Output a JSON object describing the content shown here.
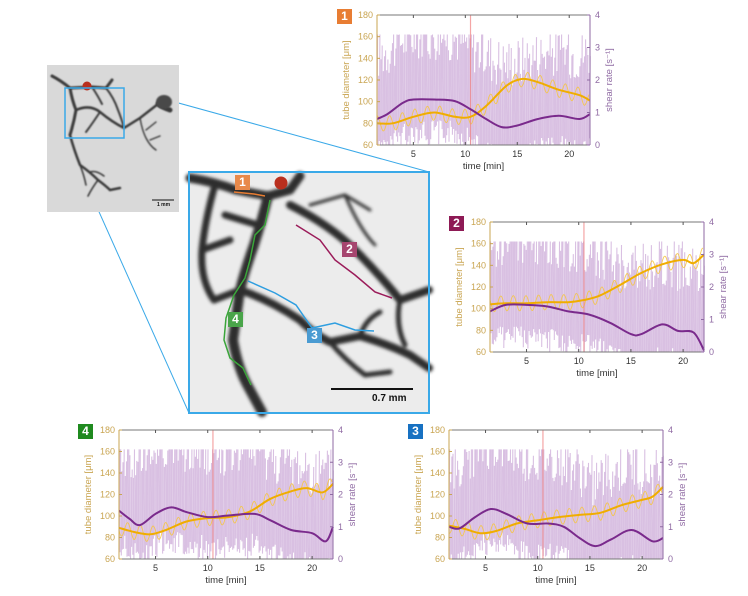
{
  "figure": {
    "overview": {
      "scale_bar_label": "1 mm",
      "inlet_marker_color": "#b92f1e",
      "zoom_box_color": "#3aa9e8"
    },
    "zoom_inset": {
      "scale_bar_label": "0.7 mm",
      "segments": [
        {
          "id": "1",
          "color": "#e87d33"
        },
        {
          "id": "2",
          "color": "#9b1c5a"
        },
        {
          "id": "3",
          "color": "#2e9ee0"
        },
        {
          "id": "4",
          "color": "#3aa53a"
        }
      ]
    }
  },
  "chart_data": [
    {
      "id": "1",
      "type": "line",
      "badge": "1",
      "badge_color": "#e87d33",
      "xlabel": "time [min]",
      "ylabel_left": "tube diameter [μm]",
      "ylabel_right": "shear rate [s⁻¹]",
      "xlim": [
        1.5,
        22
      ],
      "ylim_left": [
        60,
        180
      ],
      "ylim_right": [
        0,
        4
      ],
      "xticks": [
        5,
        10,
        15,
        20
      ],
      "yticks_left": [
        60,
        80,
        100,
        120,
        140,
        160,
        180
      ],
      "yticks_right": [
        0,
        1,
        2,
        3,
        4
      ],
      "marker_time": 10.5,
      "series": [
        {
          "name": "tube diameter (smoothed)",
          "axis": "left",
          "color": "#f0ad00",
          "x": [
            1.5,
            3,
            5,
            7,
            9,
            10.5,
            12,
            14,
            15.5,
            17,
            19,
            21,
            22
          ],
          "y": [
            80,
            80,
            86,
            90,
            86,
            86,
            96,
            115,
            121,
            118,
            111,
            106,
            101
          ]
        },
        {
          "name": "shear rate (smoothed)",
          "axis": "right",
          "color": "#7a2a8c",
          "x": [
            1.5,
            2.5,
            4,
            5,
            7,
            9,
            10.5,
            12,
            13.5,
            15,
            17,
            19,
            21,
            22
          ],
          "y": [
            0.8,
            0.95,
            1.3,
            1.4,
            1.4,
            1.35,
            1.1,
            0.8,
            0.55,
            0.6,
            0.8,
            0.9,
            0.8,
            0.95
          ]
        }
      ]
    },
    {
      "id": "2",
      "type": "line",
      "badge": "2",
      "badge_color": "#8e1a55",
      "xlabel": "time [min]",
      "ylabel_left": "tube diameter [μm]",
      "ylabel_right": "shear rate [s⁻¹]",
      "xlim": [
        1.5,
        22
      ],
      "ylim_left": [
        60,
        180
      ],
      "ylim_right": [
        0,
        4
      ],
      "xticks": [
        5,
        10,
        15,
        20
      ],
      "yticks_left": [
        60,
        80,
        100,
        120,
        140,
        160,
        180
      ],
      "yticks_right": [
        0,
        1,
        2,
        3,
        4
      ],
      "marker_time": 10.5,
      "series": [
        {
          "name": "tube diameter (smoothed)",
          "axis": "left",
          "color": "#f0ad00",
          "x": [
            1.5,
            3,
            5,
            7,
            9,
            10.5,
            12,
            14,
            16,
            18,
            20,
            21,
            22
          ],
          "y": [
            104,
            105,
            105,
            106,
            106,
            108,
            112,
            122,
            133,
            141,
            145,
            142,
            150
          ]
        },
        {
          "name": "shear rate (smoothed)",
          "axis": "right",
          "color": "#7a2a8c",
          "x": [
            1.5,
            3,
            5,
            7,
            9,
            11,
            13,
            15,
            16,
            18,
            19.5,
            21,
            22
          ],
          "y": [
            1.25,
            1.45,
            1.45,
            1.4,
            1.25,
            1.15,
            0.9,
            0.55,
            0.55,
            0.85,
            0.65,
            0.6,
            0.05
          ]
        }
      ]
    },
    {
      "id": "4",
      "type": "line",
      "badge": "4",
      "badge_color": "#1f8a1f",
      "xlabel": "time [min]",
      "ylabel_left": "tube diameter [μm]",
      "ylabel_right": "shear rate [s⁻¹]",
      "xlim": [
        1.5,
        22
      ],
      "ylim_left": [
        60,
        180
      ],
      "ylim_right": [
        0,
        4
      ],
      "xticks": [
        5,
        10,
        15,
        20
      ],
      "yticks_left": [
        60,
        80,
        100,
        120,
        140,
        160,
        180
      ],
      "yticks_right": [
        0,
        1,
        2,
        3,
        4
      ],
      "marker_time": 10.5,
      "series": [
        {
          "name": "tube diameter (smoothed)",
          "axis": "left",
          "color": "#f0ad00",
          "x": [
            1.5,
            3,
            4.5,
            6,
            8,
            10,
            12,
            14,
            16,
            18,
            19.5,
            21,
            22
          ],
          "y": [
            89,
            85,
            83,
            87,
            95,
            98,
            99,
            104,
            116,
            123,
            126,
            122,
            130
          ]
        },
        {
          "name": "shear rate (smoothed)",
          "axis": "right",
          "color": "#7a2a8c",
          "x": [
            1.5,
            2.5,
            3.5,
            5,
            6.5,
            8,
            10,
            12,
            14.5,
            16,
            18,
            20,
            21.3,
            22
          ],
          "y": [
            1.5,
            1.25,
            1.05,
            1.4,
            1.6,
            1.45,
            1.3,
            1.35,
            1.4,
            1.2,
            0.9,
            0.8,
            0.55,
            1.0
          ]
        }
      ]
    },
    {
      "id": "3",
      "type": "line",
      "badge": "3",
      "badge_color": "#1771c2",
      "xlabel": "time [min]",
      "ylabel_left": "tube diameter [μm]",
      "ylabel_right": "shear rate [s⁻¹]",
      "xlim": [
        1.5,
        22
      ],
      "ylim_left": [
        60,
        180
      ],
      "ylim_right": [
        0,
        4
      ],
      "xticks": [
        5,
        10,
        15,
        20
      ],
      "yticks_left": [
        60,
        80,
        100,
        120,
        140,
        160,
        180
      ],
      "yticks_right": [
        0,
        1,
        2,
        3,
        4
      ],
      "marker_time": 10.5,
      "series": [
        {
          "name": "tube diameter (smoothed)",
          "axis": "left",
          "color": "#f0ad00",
          "x": [
            1.5,
            3,
            4.5,
            6,
            8,
            10,
            12,
            14,
            16,
            18,
            20,
            21,
            22
          ],
          "y": [
            91,
            88,
            84,
            86,
            93,
            96,
            99,
            101,
            103,
            110,
            115,
            118,
            127
          ]
        },
        {
          "name": "shear rate (smoothed)",
          "axis": "right",
          "color": "#7a2a8c",
          "x": [
            1.5,
            2.5,
            4,
            5.5,
            7,
            9,
            11,
            12.5,
            14,
            15.5,
            17,
            19,
            21,
            22
          ],
          "y": [
            1.0,
            0.95,
            1.3,
            1.55,
            1.4,
            1.1,
            1.1,
            1.0,
            0.65,
            0.4,
            0.6,
            0.9,
            0.55,
            0.65
          ]
        }
      ]
    }
  ]
}
